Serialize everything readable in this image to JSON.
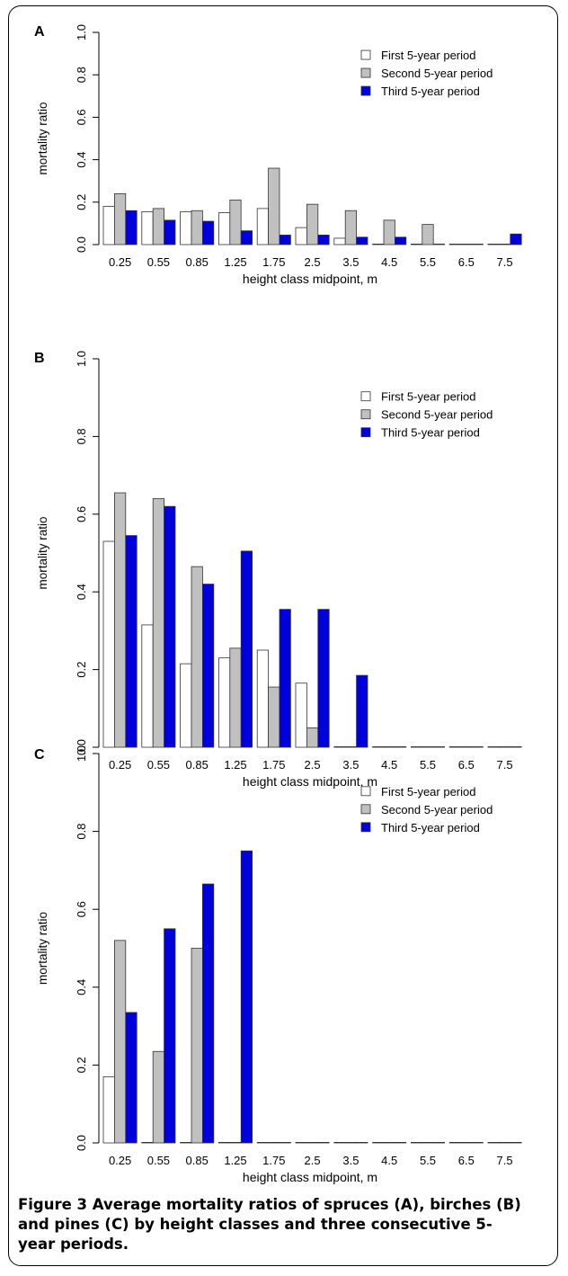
{
  "colors": {
    "first": "#ffffff",
    "second": "#c0c0c0",
    "third": "#0000dd",
    "stroke": "#333333"
  },
  "legend_labels": [
    "First 5-year period",
    "Second 5-year period",
    "Third 5-year period"
  ],
  "caption": {
    "bold": "Figure 3 Average mortality ratios of spruces (A), birches (B) and pines (C) by height classes and three consecutive 5-year periods."
  },
  "chart_data": [
    {
      "type": "bar",
      "panel": "A",
      "xlabel": "height class midpoint, m",
      "ylabel": "mortality ratio",
      "ylim": [
        0,
        1
      ],
      "yticks": [
        "0.0",
        "0.2",
        "0.4",
        "0.6",
        "0.8",
        "1.0"
      ],
      "categories": [
        "0.25",
        "0.55",
        "0.85",
        "1.25",
        "1.75",
        "2.5",
        "3.5",
        "4.5",
        "5.5",
        "6.5",
        "7.5"
      ],
      "legend_position": "top-right",
      "series": [
        {
          "name": "First 5-year period",
          "values": [
            0.18,
            0.155,
            0.155,
            0.15,
            0.17,
            0.08,
            0.03,
            0,
            0,
            0,
            0
          ]
        },
        {
          "name": "Second 5-year period",
          "values": [
            0.24,
            0.17,
            0.16,
            0.21,
            0.36,
            0.19,
            0.16,
            0.115,
            0.095,
            0,
            0
          ]
        },
        {
          "name": "Third 5-year period",
          "values": [
            0.16,
            0.115,
            0.11,
            0.065,
            0.045,
            0.045,
            0.035,
            0.035,
            0,
            0,
            0.05
          ]
        }
      ]
    },
    {
      "type": "bar",
      "panel": "B",
      "xlabel": "height class midpoint, m",
      "ylabel": "mortality ratio",
      "ylim": [
        0,
        1
      ],
      "yticks": [
        "0.0",
        "0.2",
        "0.4",
        "0.6",
        "0.8",
        "1.0"
      ],
      "categories": [
        "0.25",
        "0.55",
        "0.85",
        "1.25",
        "1.75",
        "2.5",
        "3.5",
        "4.5",
        "5.5",
        "6.5",
        "7.5"
      ],
      "legend_position": "top-right",
      "series": [
        {
          "name": "First 5-year period",
          "values": [
            0.53,
            0.315,
            0.215,
            0.23,
            0.25,
            0.165,
            0,
            0,
            0,
            0,
            0
          ]
        },
        {
          "name": "Second 5-year period",
          "values": [
            0.655,
            0.64,
            0.465,
            0.255,
            0.155,
            0.05,
            0,
            0,
            0,
            0,
            0
          ]
        },
        {
          "name": "Third 5-year period",
          "values": [
            0.545,
            0.62,
            0.42,
            0.505,
            0.355,
            0.355,
            0.185,
            0,
            0,
            0,
            0
          ]
        }
      ]
    },
    {
      "type": "bar",
      "panel": "C",
      "xlabel": "height class midpoint, m",
      "ylabel": "mortality ratio",
      "ylim": [
        0,
        1
      ],
      "yticks": [
        "0.0",
        "0.2",
        "0.4",
        "0.6",
        "0.8",
        "1.0"
      ],
      "categories": [
        "0.25",
        "0.55",
        "0.85",
        "1.25",
        "1.75",
        "2.5",
        "3.5",
        "4.5",
        "5.5",
        "6.5",
        "7.5"
      ],
      "legend_position": "top-right",
      "series": [
        {
          "name": "First 5-year period",
          "values": [
            0.17,
            0,
            0,
            0,
            0,
            0,
            0,
            0,
            0,
            0,
            0
          ]
        },
        {
          "name": "Second 5-year period",
          "values": [
            0.52,
            0.235,
            0.5,
            0,
            0,
            0,
            0,
            0,
            0,
            0,
            0
          ]
        },
        {
          "name": "Third 5-year period",
          "values": [
            0.335,
            0.55,
            0.665,
            0.75,
            0,
            0,
            0,
            0,
            0,
            0,
            0
          ]
        }
      ]
    }
  ]
}
